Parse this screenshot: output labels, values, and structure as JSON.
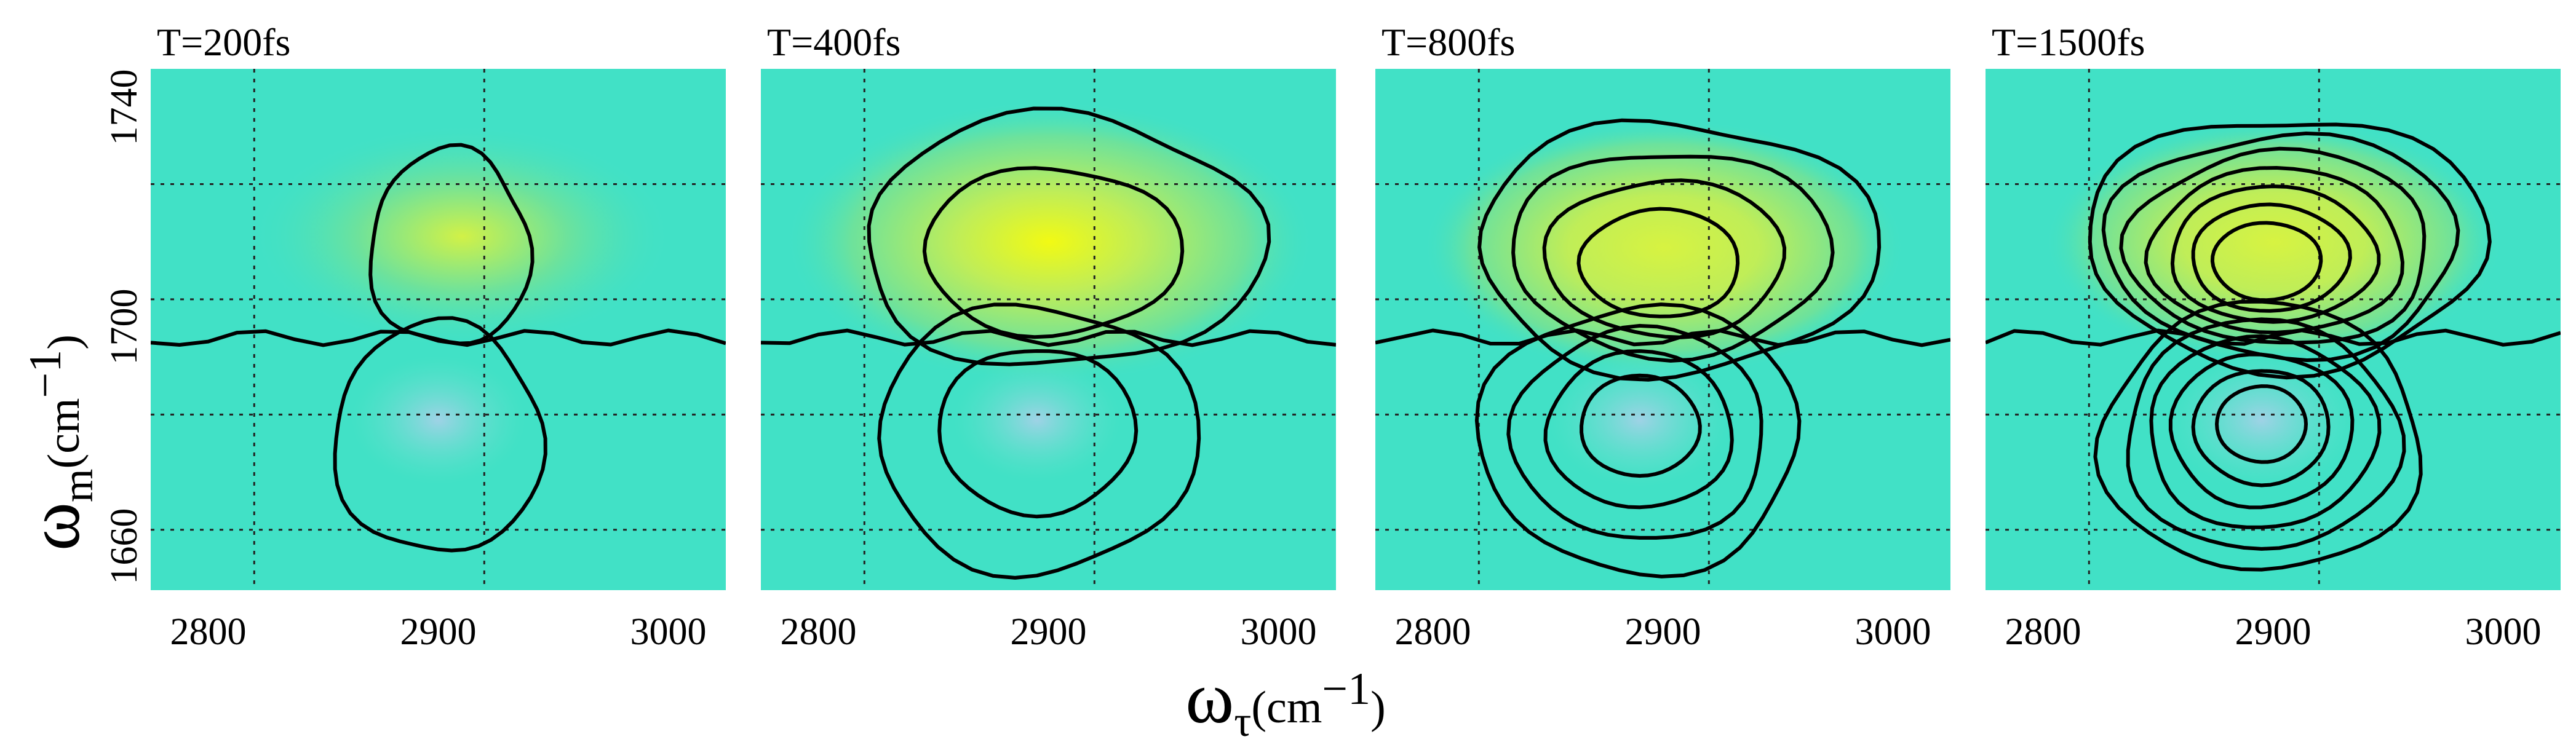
{
  "chart_data": {
    "type": "heatmap",
    "description_axes": {
      "xlabel": {
        "symbol": "ω",
        "sub": "τ",
        "unit": "(cm",
        "exp": "−1",
        "close": ")"
      },
      "ylabel": {
        "symbol": "ω",
        "sub": "m",
        "unit": "(cm",
        "exp": "−1",
        "close": ")"
      }
    },
    "xlim": [
      2775,
      3025
    ],
    "ylim": [
      1652,
      1747
    ],
    "x_ticks": [
      2800,
      2900,
      3000
    ],
    "y_tick_labels": [
      "1740",
      "1700",
      "1660"
    ],
    "y_tick_values": [
      1740,
      1700,
      1660
    ],
    "y_grid": [
      1663,
      1684,
      1705,
      1726
    ],
    "x_grid": [
      2820,
      2920
    ],
    "grid": "dotted",
    "colormap": [
      "#9fd2e6",
      "#5fe3c8",
      "#41e1c6",
      "#6fe29a",
      "#c6ee52",
      "#fbfb0a"
    ],
    "panels": [
      {
        "title": "T=200fs",
        "peak": {
          "x": 2905,
          "y": 1712,
          "amp": 0.55
        },
        "neg": {
          "x": 2900,
          "y": 1683,
          "amp": 0.35
        },
        "levels_pos": 1,
        "levels_neg": 1
      },
      {
        "title": "T=400fs",
        "peak": {
          "x": 2895,
          "y": 1711,
          "amp": 1.0
        },
        "neg": {
          "x": 2895,
          "y": 1683,
          "amp": 0.25
        },
        "levels_pos": 2,
        "levels_neg": 2
      },
      {
        "title": "T=800fs",
        "peak": {
          "x": 2895,
          "y": 1710,
          "amp": 0.8
        },
        "neg": {
          "x": 2890,
          "y": 1683,
          "amp": 0.45
        },
        "levels_pos": 4,
        "levels_neg": 4
      },
      {
        "title": "T=1500fs",
        "peak": {
          "x": 2895,
          "y": 1711,
          "amp": 0.7
        },
        "neg": {
          "x": 2895,
          "y": 1683,
          "amp": 0.55
        },
        "levels_pos": 7,
        "levels_neg": 6
      }
    ]
  }
}
